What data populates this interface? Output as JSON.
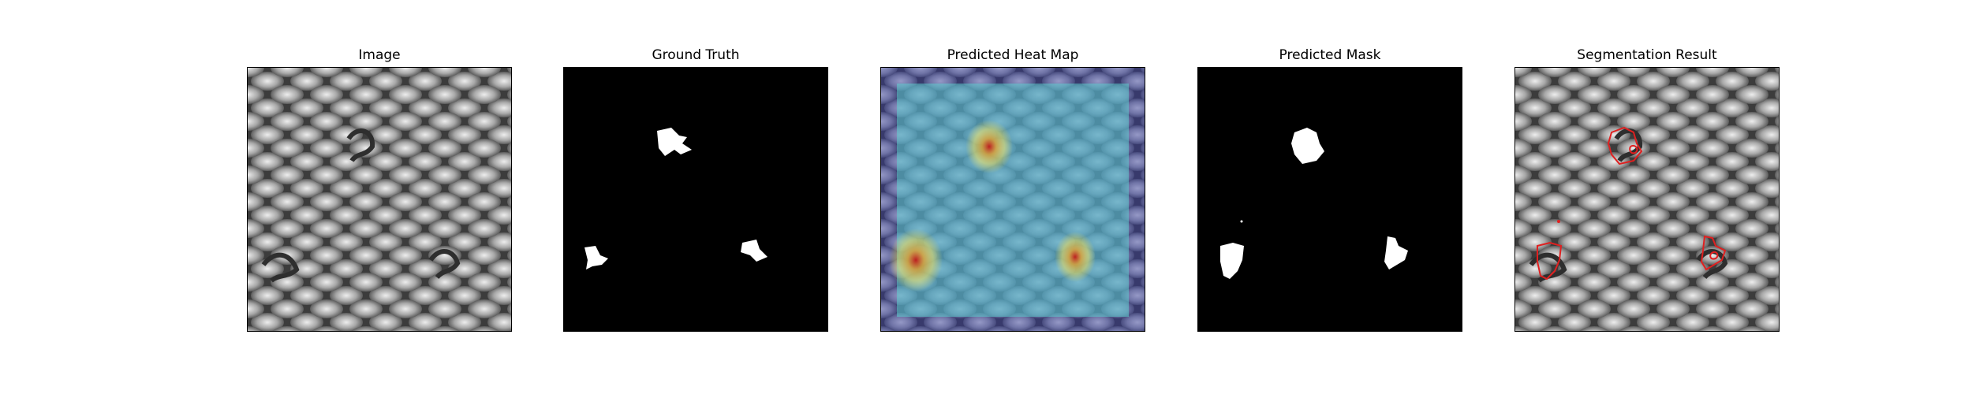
{
  "figure": {
    "panels": [
      {
        "title": "Image"
      },
      {
        "title": "Ground Truth"
      },
      {
        "title": "Predicted Heat Map"
      },
      {
        "title": "Predicted Mask"
      },
      {
        "title": "Segmentation Result"
      }
    ]
  },
  "colors": {
    "background": "#ffffff",
    "mask_foreground": "#ffffff",
    "mask_background": "#000000",
    "contour": "#e02020",
    "heat_low": "#3b3f9c",
    "heat_mid": "#5fd0d0",
    "heat_high": "#f0e060",
    "heat_peak": "#c01818"
  }
}
